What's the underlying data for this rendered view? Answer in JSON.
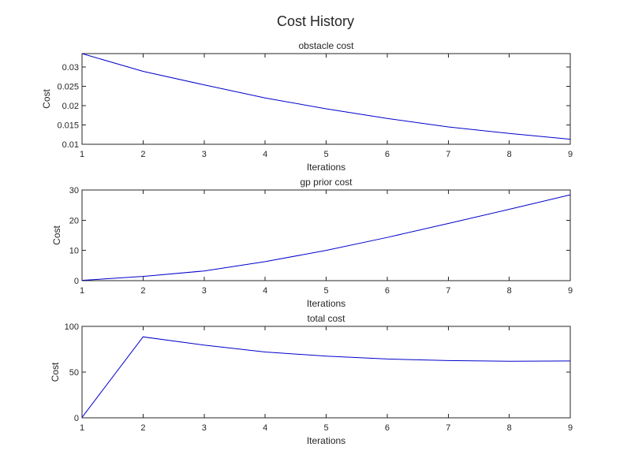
{
  "figure": {
    "title": "Cost History"
  },
  "colors": {
    "line": "#0000cc",
    "axes": "#262626",
    "background": "#ffffff"
  },
  "chart_data": [
    {
      "type": "line",
      "title": "obstacle cost",
      "xlabel": "Iterations",
      "ylabel": "Cost",
      "xlim": [
        1,
        9
      ],
      "ylim": [
        0.01,
        0.0335
      ],
      "xticks": [
        1,
        2,
        3,
        4,
        5,
        6,
        7,
        8,
        9
      ],
      "yticks": [
        0.01,
        0.015,
        0.02,
        0.025,
        0.03
      ],
      "ytick_labels": [
        "0.01",
        "0.015",
        "0.02",
        "0.025",
        "0.03"
      ],
      "grid": false,
      "series": [
        {
          "x": [
            1,
            2,
            3,
            4,
            5,
            6,
            7,
            8,
            9
          ],
          "y": [
            0.0335,
            0.0289,
            0.0254,
            0.022,
            0.0192,
            0.0167,
            0.0145,
            0.0128,
            0.0113
          ]
        }
      ]
    },
    {
      "type": "line",
      "title": "gp prior cost",
      "xlabel": "Iterations",
      "ylabel": "Cost",
      "xlim": [
        1,
        9
      ],
      "ylim": [
        0,
        30
      ],
      "xticks": [
        1,
        2,
        3,
        4,
        5,
        6,
        7,
        8,
        9
      ],
      "yticks": [
        0,
        10,
        20,
        30
      ],
      "ytick_labels": [
        "0",
        "10",
        "20",
        "30"
      ],
      "grid": false,
      "series": [
        {
          "x": [
            1,
            2,
            3,
            4,
            5,
            6,
            7,
            8,
            9
          ],
          "y": [
            0.1,
            1.4,
            3.2,
            6.3,
            10.0,
            14.3,
            18.9,
            23.6,
            28.4
          ]
        }
      ]
    },
    {
      "type": "line",
      "title": "total cost",
      "xlabel": "Iterations",
      "ylabel": "Cost",
      "xlim": [
        1,
        9
      ],
      "ylim": [
        0,
        100
      ],
      "xticks": [
        1,
        2,
        3,
        4,
        5,
        6,
        7,
        8,
        9
      ],
      "yticks": [
        0,
        50,
        100
      ],
      "ytick_labels": [
        "0",
        "50",
        "100"
      ],
      "grid": false,
      "series": [
        {
          "x": [
            1,
            2,
            3,
            4,
            5,
            6,
            7,
            8,
            9
          ],
          "y": [
            0.5,
            88.5,
            79.5,
            72.0,
            67.5,
            64.3,
            62.6,
            61.9,
            62.2
          ]
        }
      ]
    }
  ]
}
